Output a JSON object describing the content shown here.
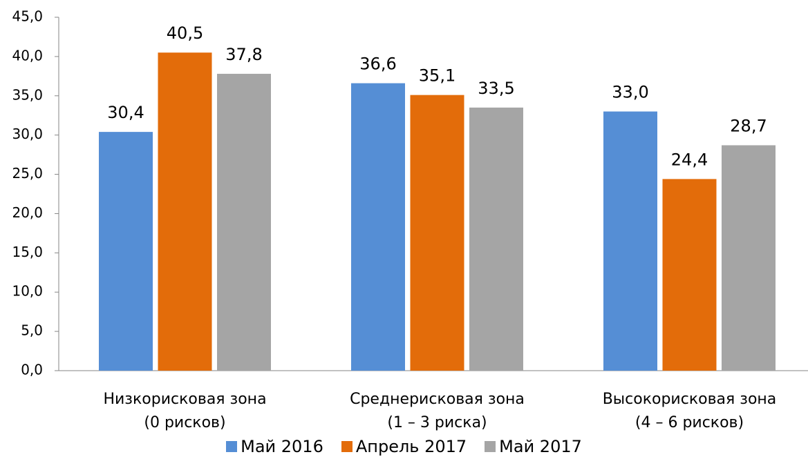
{
  "chart_data": {
    "type": "bar",
    "categories": [
      "Низкорисковая зона\n(0 рисков)",
      "Среднерисковая зона\n(1 – 3 риска)",
      "Высокорисковая зона\n(4 – 6 рисков)"
    ],
    "series": [
      {
        "name": "Май 2016",
        "color": "#558ed5",
        "values": [
          30.4,
          36.6,
          33.0
        ],
        "value_labels": [
          "30,4",
          "36,6",
          "33,0"
        ]
      },
      {
        "name": "Апрель 2017",
        "color": "#e36c0a",
        "values": [
          40.5,
          35.1,
          24.4
        ],
        "value_labels": [
          "40,5",
          "35,1",
          "24,4"
        ]
      },
      {
        "name": "Май 2017",
        "color": "#a5a5a5",
        "values": [
          37.8,
          33.5,
          28.7
        ],
        "value_labels": [
          "37,8",
          "33,5",
          "28,7"
        ]
      }
    ],
    "ylim": [
      0,
      45
    ],
    "yticks": [
      {
        "value": 0,
        "label": "0,0"
      },
      {
        "value": 5,
        "label": "5,0"
      },
      {
        "value": 10,
        "label": "10,0"
      },
      {
        "value": 15,
        "label": "15,0"
      },
      {
        "value": 20,
        "label": "20,0"
      },
      {
        "value": 25,
        "label": "25,0"
      },
      {
        "value": 30,
        "label": "30,0"
      },
      {
        "value": 35,
        "label": "35,0"
      },
      {
        "value": 40,
        "label": "40,0"
      },
      {
        "value": 45,
        "label": "45,0"
      }
    ],
    "grid": false,
    "legend": "bottom"
  }
}
